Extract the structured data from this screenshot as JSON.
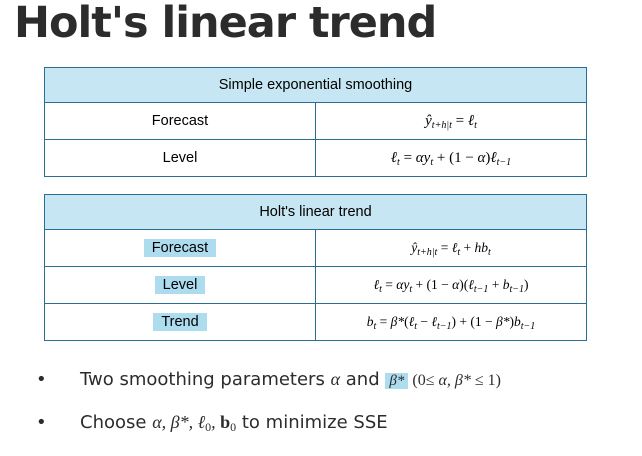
{
  "title": "Holt's linear trend",
  "table1": {
    "header": "Simple exponential smoothing",
    "rows": [
      {
        "label": "Forecast"
      },
      {
        "label": "Level"
      }
    ]
  },
  "table2": {
    "header": "Holt's linear trend",
    "rows": [
      {
        "label": "Forecast"
      },
      {
        "label": "Level"
      },
      {
        "label": "Trend"
      }
    ]
  },
  "bullets": {
    "b1_text": "Two smoothing parameters",
    "b1_and": "and",
    "b2_prefix": "Choose",
    "b2_suffix": "to minimize SSE"
  },
  "colors": {
    "header_fill": "#c7e6f3",
    "highlight": "#aedcef",
    "border": "#2a6f93"
  }
}
